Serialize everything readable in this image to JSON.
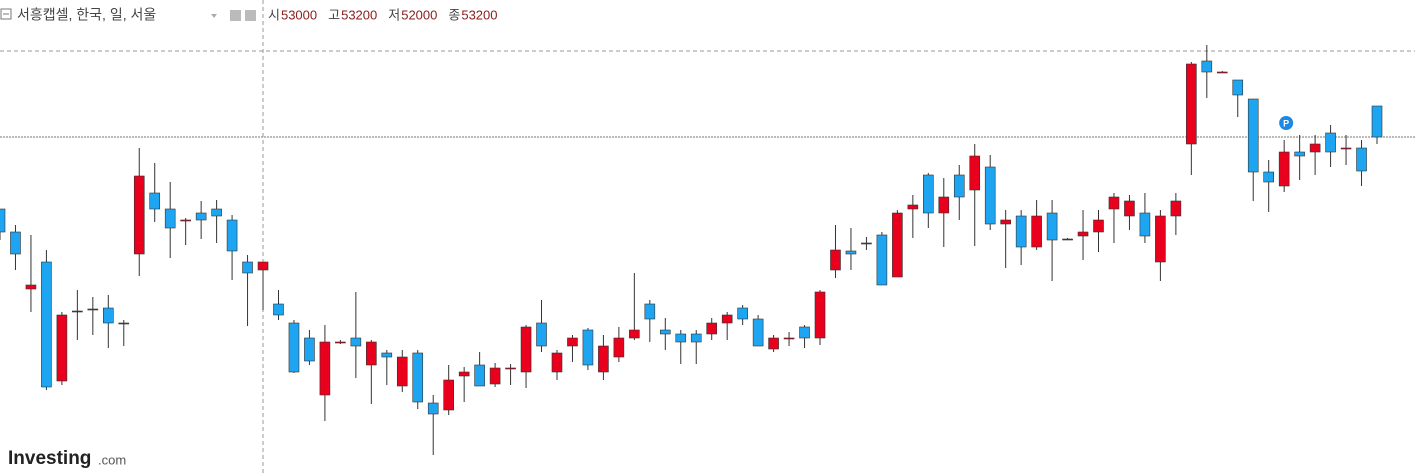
{
  "chart_data": {
    "type": "candlestick",
    "title": "서흥캡셀, 한국, 일, 서울",
    "ohlc_header": [
      {
        "label": "시",
        "value": 53000
      },
      {
        "label": "고",
        "value": 53200
      },
      {
        "label": "저",
        "value": 52000
      },
      {
        "label": "종",
        "value": 53200
      }
    ],
    "annotations": [
      "P"
    ],
    "logo": [
      "Investing",
      ".com"
    ],
    "up_color": "#e8001c",
    "down_color": "#1ea5f2",
    "ylim": [
      47875,
      59750
    ],
    "open": [
      54525,
      53950,
      52525,
      53200,
      50225,
      51950,
      52025,
      52050,
      51675,
      53400,
      54925,
      54525,
      54250,
      54425,
      54525,
      54250,
      53200,
      53000,
      52150,
      51675,
      51300,
      49875,
      51200,
      51300,
      50625,
      50925,
      50100,
      50925,
      49675,
      49500,
      50350,
      50625,
      50150,
      50550,
      50450,
      51675,
      50450,
      51100,
      51500,
      50450,
      50825,
      51300,
      52150,
      51500,
      51400,
      51400,
      51400,
      51675,
      52050,
      51775,
      51025,
      51300,
      51575,
      51300,
      53000,
      53475,
      53675,
      53875,
      52825,
      54525,
      55375,
      54425,
      55375,
      55000,
      55575,
      54150,
      54350,
      53575,
      54425,
      53775,
      53850,
      53950,
      54525,
      54350,
      54425,
      53200,
      54350,
      56150,
      58225,
      57950,
      57750,
      57275,
      55450,
      55100,
      55950,
      55950,
      56425,
      56050,
      56050,
      57100
    ],
    "high": [
      54525,
      54125,
      53875,
      53500,
      51950,
      52500,
      52325,
      52375,
      51750,
      56050,
      55675,
      55200,
      54300,
      54725,
      54750,
      54375,
      53375,
      53200,
      52500,
      51750,
      51500,
      51625,
      51250,
      52450,
      51250,
      51000,
      51000,
      51000,
      49875,
      50625,
      50575,
      50950,
      50675,
      50650,
      51625,
      52250,
      51000,
      51375,
      51550,
      51375,
      51575,
      52925,
      52250,
      51800,
      51500,
      51500,
      51800,
      51950,
      52125,
      51875,
      51375,
      51450,
      51625,
      52500,
      54125,
      54050,
      53825,
      53950,
      54500,
      54875,
      55425,
      55300,
      55625,
      56150,
      55875,
      54500,
      54500,
      54750,
      54750,
      53800,
      54500,
      54500,
      54925,
      54875,
      54925,
      54500,
      54925,
      58200,
      58625,
      57975,
      57750,
      57275,
      55750,
      56250,
      56375,
      56375,
      56625,
      56375,
      56250,
      57100
    ],
    "low": [
      53750,
      53000,
      51950,
      50000,
      50125,
      51250,
      51375,
      51050,
      51100,
      52850,
      54200,
      53300,
      53625,
      53775,
      53675,
      52750,
      51600,
      52000,
      51750,
      50425,
      50625,
      49225,
      51150,
      50300,
      49650,
      50125,
      49950,
      49525,
      48375,
      49375,
      49700,
      50100,
      50075,
      50125,
      50050,
      50950,
      50250,
      50700,
      50500,
      50250,
      50700,
      51250,
      51200,
      51000,
      50650,
      50650,
      51250,
      51250,
      51625,
      51100,
      50950,
      51100,
      51050,
      51125,
      52800,
      53000,
      53500,
      52625,
      52825,
      53800,
      54050,
      53575,
      54250,
      53600,
      54000,
      53050,
      53125,
      53500,
      52725,
      53750,
      53250,
      53450,
      53675,
      54000,
      53675,
      52725,
      53875,
      55375,
      57300,
      57925,
      56825,
      54725,
      54450,
      54950,
      55250,
      55375,
      55575,
      55625,
      55100,
      56150
    ],
    "close": [
      53950,
      53400,
      52625,
      50075,
      51875,
      51975,
      52025,
      51675,
      51675,
      55350,
      54525,
      54050,
      54250,
      54250,
      54350,
      53475,
      52925,
      53200,
      51875,
      50450,
      50725,
      51200,
      51200,
      51100,
      51200,
      50825,
      50825,
      49700,
      49400,
      50250,
      50450,
      50100,
      50550,
      50550,
      51575,
      51100,
      50925,
      51300,
      50625,
      51100,
      51300,
      51500,
      51775,
      51400,
      51200,
      51200,
      51675,
      51875,
      51775,
      51100,
      51300,
      51300,
      51300,
      52450,
      53500,
      53400,
      53675,
      52625,
      54425,
      54625,
      54425,
      54825,
      54825,
      55850,
      54150,
      54250,
      53575,
      54350,
      53750,
      53775,
      53950,
      54250,
      54825,
      54725,
      53850,
      54350,
      54725,
      58150,
      57950,
      57950,
      57375,
      55450,
      55200,
      55950,
      55850,
      56150,
      55950,
      56050,
      55475,
      56325
    ]
  }
}
